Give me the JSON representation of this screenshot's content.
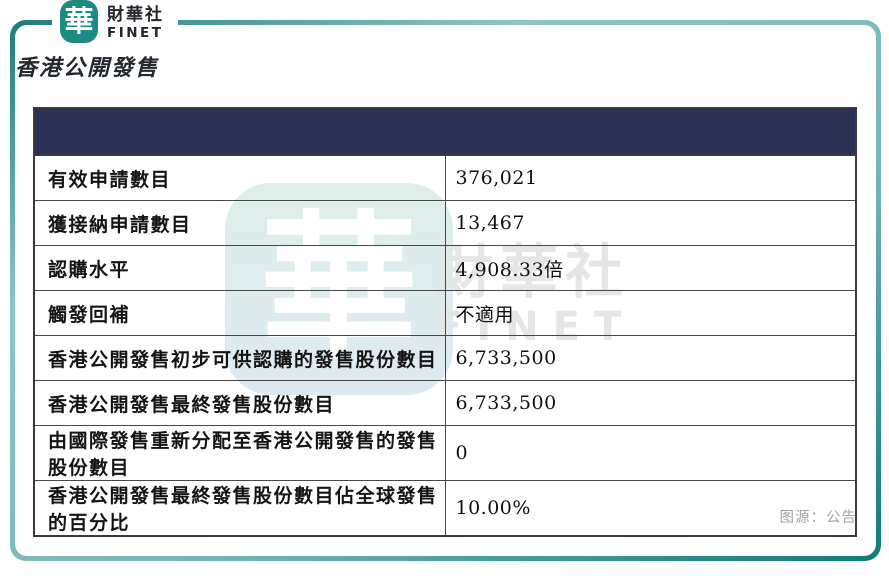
{
  "brand": {
    "logo_char": "華",
    "name_zh": "財華社",
    "name_en": "FINET"
  },
  "page_title": "香港公開發售",
  "table": {
    "header_band": "",
    "rows": [
      {
        "label": "有效申請數目",
        "value": "376,021"
      },
      {
        "label": "獲接納申請數目",
        "value": "13,467"
      },
      {
        "label": "認購水平",
        "value": "4,908.33倍"
      },
      {
        "label": "觸發回補",
        "value": "不適用"
      },
      {
        "label": "香港公開發售初步可供認購的發售股份數目",
        "value": "6,733,500"
      },
      {
        "label": "香港公開發售最終發售股份數目",
        "value": "6,733,500"
      },
      {
        "label": "由國際發售重新分配至香港公開發售的發售股份數目",
        "value": "0"
      },
      {
        "label": "香港公開發售最終發售股份數目佔全球發售的百分比",
        "value": "10.00%"
      }
    ]
  },
  "watermark": {
    "logo_char": "華",
    "name_zh": "財華社",
    "name_en": "FINET"
  },
  "footer": {
    "source_label": "图源：公告"
  },
  "colors": {
    "accent_teal": "#1e8b82",
    "frame_teal_dark": "#157b7a",
    "frame_teal_light": "#8fc6c4",
    "header_band_navy": "#2a3154",
    "table_border": "#3a3a3a",
    "watermark_mint": "#ddeee9",
    "watermark_gray": "#e4e6e5",
    "source_text_gray": "#a0a6a6"
  }
}
